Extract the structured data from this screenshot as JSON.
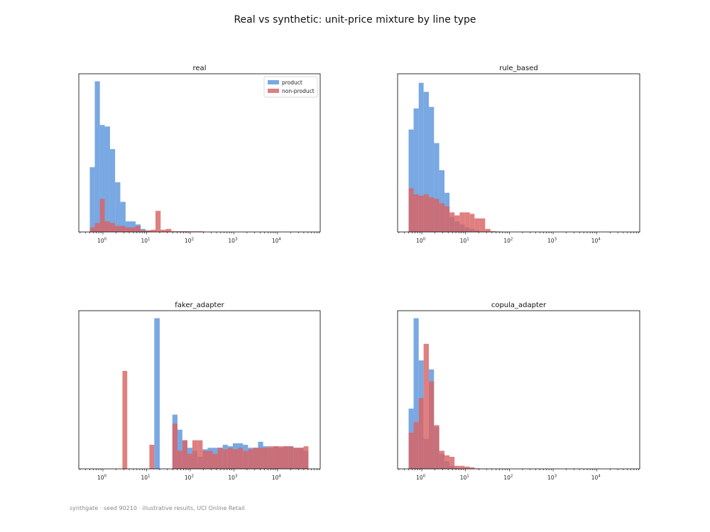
{
  "figure": {
    "title": "Real vs synthetic: unit-price mixture by line type",
    "footer": "synthgate · seed 90210 · illustrative results, UCI Online Retail"
  },
  "colors": {
    "product": "#5b95dd",
    "non_product": "#d96363"
  },
  "chart_data": [
    {
      "type": "bar",
      "title": "real",
      "x_scale": "log",
      "x_ticks": [
        "10^0",
        "10^1",
        "10^2",
        "10^3",
        "10^4"
      ],
      "legend": {
        "position": "top-right",
        "entries": [
          "product",
          "non-product"
        ]
      },
      "series": [
        {
          "name": "product",
          "color": "#5b95dd",
          "bins": [
            [
              0.5,
              0.65,
              0.43
            ],
            [
              0.65,
              0.85,
              1.0
            ],
            [
              0.85,
              1.1,
              0.71
            ],
            [
              1.1,
              1.45,
              0.7
            ],
            [
              1.45,
              1.9,
              0.55
            ],
            [
              1.9,
              2.5,
              0.33
            ],
            [
              2.5,
              3.3,
              0.2
            ],
            [
              3.3,
              4.3,
              0.07
            ],
            [
              4.3,
              5.6,
              0.07
            ],
            [
              5.6,
              7.3,
              0.05
            ],
            [
              7.3,
              9.5,
              0.02
            ],
            [
              9.5,
              12.5,
              0.01
            ]
          ]
        },
        {
          "name": "non-product",
          "color": "#d96363",
          "bins": [
            [
              0.5,
              0.65,
              0.03
            ],
            [
              0.65,
              0.85,
              0.06
            ],
            [
              0.85,
              1.1,
              0.22
            ],
            [
              1.1,
              1.45,
              0.07
            ],
            [
              1.45,
              1.9,
              0.06
            ],
            [
              1.9,
              2.5,
              0.04
            ],
            [
              2.5,
              3.3,
              0.04
            ],
            [
              3.3,
              4.3,
              0.03
            ],
            [
              4.3,
              5.6,
              0.03
            ],
            [
              5.6,
              7.3,
              0.04
            ],
            [
              7.3,
              9.5,
              0.01
            ],
            [
              9.5,
              12.5,
              0.01
            ],
            [
              12.5,
              16,
              0.015
            ],
            [
              16,
              21,
              0.14
            ],
            [
              21,
              28,
              0.015
            ],
            [
              28,
              37,
              0.02
            ],
            [
              37,
              49,
              0.005
            ],
            [
              49,
              65,
              0.005
            ],
            [
              65,
              85,
              0.005
            ],
            [
              85,
              112,
              0.004
            ],
            [
              112,
              150,
              0.004
            ],
            [
              150,
              200,
              0.004
            ]
          ]
        }
      ]
    },
    {
      "type": "bar",
      "title": "rule_based",
      "x_scale": "log",
      "x_ticks": [
        "10^0",
        "10^1",
        "10^2",
        "10^3",
        "10^4"
      ],
      "series": [
        {
          "name": "product",
          "color": "#5b95dd",
          "bins": [
            [
              0.5,
              0.65,
              0.68
            ],
            [
              0.65,
              0.85,
              0.82
            ],
            [
              0.85,
              1.1,
              0.99
            ],
            [
              1.1,
              1.45,
              0.93
            ],
            [
              1.45,
              1.9,
              0.83
            ],
            [
              1.9,
              2.5,
              0.59
            ],
            [
              2.5,
              3.3,
              0.41
            ],
            [
              3.3,
              4.3,
              0.26
            ],
            [
              4.3,
              5.6,
              0.1
            ],
            [
              5.6,
              7.3,
              0.07
            ],
            [
              7.3,
              9.5,
              0.05
            ],
            [
              9.5,
              12.5,
              0.03
            ],
            [
              12.5,
              16,
              0.02
            ],
            [
              16,
              21,
              0.01
            ]
          ]
        },
        {
          "name": "non-product",
          "color": "#d96363",
          "bins": [
            [
              0.5,
              0.65,
              0.29
            ],
            [
              0.65,
              0.85,
              0.25
            ],
            [
              0.85,
              1.1,
              0.24
            ],
            [
              1.1,
              1.45,
              0.25
            ],
            [
              1.45,
              1.9,
              0.23
            ],
            [
              1.9,
              2.5,
              0.22
            ],
            [
              2.5,
              3.3,
              0.19
            ],
            [
              3.3,
              4.3,
              0.17
            ],
            [
              4.3,
              5.6,
              0.13
            ],
            [
              5.6,
              7.3,
              0.11
            ],
            [
              7.3,
              9.5,
              0.13
            ],
            [
              9.5,
              12.5,
              0.13
            ],
            [
              12.5,
              16,
              0.12
            ],
            [
              16,
              21,
              0.09
            ],
            [
              21,
              28,
              0.09
            ],
            [
              28,
              37,
              0.02
            ],
            [
              37,
              49,
              0.005
            ],
            [
              49,
              65,
              0.003
            ]
          ]
        }
      ]
    },
    {
      "type": "bar",
      "title": "faker_adapter",
      "x_scale": "log",
      "x_ticks": [
        "10^0",
        "10^1",
        "10^2",
        "10^3",
        "10^4"
      ],
      "series": [
        {
          "name": "product",
          "color": "#5b95dd",
          "bins": [
            [
              15,
              20,
              1.0
            ],
            [
              39,
              51,
              0.36
            ],
            [
              51,
              66,
              0.26
            ],
            [
              66,
              86,
              0.19
            ],
            [
              86,
              112,
              0.14
            ],
            [
              112,
              147,
              0.12
            ],
            [
              147,
              192,
              0.08
            ],
            [
              192,
              250,
              0.13
            ],
            [
              250,
              326,
              0.14
            ],
            [
              326,
              425,
              0.14
            ],
            [
              425,
              555,
              0.14
            ],
            [
              555,
              725,
              0.16
            ],
            [
              725,
              946,
              0.15
            ],
            [
              946,
              1235,
              0.17
            ],
            [
              1235,
              1612,
              0.17
            ],
            [
              1612,
              2104,
              0.16
            ],
            [
              2104,
              2746,
              0.14
            ],
            [
              2746,
              3584,
              0.14
            ],
            [
              3584,
              4678,
              0.18
            ],
            [
              4678,
              6106,
              0.15
            ],
            [
              6106,
              7970,
              0.14
            ],
            [
              7970,
              10403,
              0.15
            ],
            [
              10403,
              13579,
              0.14
            ],
            [
              13579,
              17724,
              0.15
            ],
            [
              17724,
              23134,
              0.15
            ],
            [
              23134,
              30196,
              0.14
            ],
            [
              30196,
              39414,
              0.14
            ],
            [
              39414,
              51000,
              0.12
            ]
          ]
        },
        {
          "name": "non-product",
          "color": "#d96363",
          "bins": [
            [
              2.8,
              3.6,
              0.65
            ],
            [
              11.6,
              15,
              0.16
            ],
            [
              39,
              51,
              0.3
            ],
            [
              51,
              66,
              0.12
            ],
            [
              66,
              86,
              0.19
            ],
            [
              86,
              112,
              0.1
            ],
            [
              112,
              147,
              0.19
            ],
            [
              147,
              192,
              0.19
            ],
            [
              192,
              250,
              0.12
            ],
            [
              250,
              326,
              0.12
            ],
            [
              326,
              425,
              0.1
            ],
            [
              425,
              555,
              0.14
            ],
            [
              555,
              725,
              0.13
            ],
            [
              725,
              946,
              0.14
            ],
            [
              946,
              1235,
              0.13
            ],
            [
              1235,
              1612,
              0.14
            ],
            [
              1612,
              2104,
              0.12
            ],
            [
              2104,
              2746,
              0.13
            ],
            [
              2746,
              3584,
              0.14
            ],
            [
              3584,
              4678,
              0.14
            ],
            [
              4678,
              6106,
              0.14
            ],
            [
              6106,
              7970,
              0.15
            ],
            [
              7970,
              10403,
              0.15
            ],
            [
              10403,
              13579,
              0.15
            ],
            [
              13579,
              17724,
              0.15
            ],
            [
              17724,
              23134,
              0.15
            ],
            [
              23134,
              30196,
              0.14
            ],
            [
              30196,
              39414,
              0.14
            ],
            [
              39414,
              51000,
              0.15
            ]
          ]
        }
      ]
    },
    {
      "type": "bar",
      "title": "copula_adapter",
      "x_scale": "log",
      "x_ticks": [
        "10^0",
        "10^1",
        "10^2",
        "10^3",
        "10^4"
      ],
      "series": [
        {
          "name": "product",
          "color": "#5b95dd",
          "bins": [
            [
              0.5,
              0.65,
              0.4
            ],
            [
              0.65,
              0.85,
              1.0
            ],
            [
              0.85,
              1.1,
              0.72
            ],
            [
              1.1,
              1.45,
              0.2
            ],
            [
              1.45,
              1.9,
              0.66
            ],
            [
              1.9,
              2.5,
              0.28
            ],
            [
              2.5,
              3.3,
              0.1
            ],
            [
              3.3,
              4.3,
              0.05
            ],
            [
              4.3,
              5.6,
              0.02
            ],
            [
              5.6,
              7.3,
              0.005
            ]
          ]
        },
        {
          "name": "non-product",
          "color": "#d96363",
          "bins": [
            [
              0.5,
              0.65,
              0.24
            ],
            [
              0.65,
              0.85,
              0.31
            ],
            [
              0.85,
              1.1,
              0.47
            ],
            [
              1.1,
              1.45,
              0.83
            ],
            [
              1.45,
              1.9,
              0.58
            ],
            [
              1.9,
              2.5,
              0.29
            ],
            [
              2.5,
              3.3,
              0.12
            ],
            [
              3.3,
              4.3,
              0.09
            ],
            [
              4.3,
              5.6,
              0.08
            ],
            [
              5.6,
              7.3,
              0.02
            ],
            [
              7.3,
              9.5,
              0.02
            ],
            [
              9.5,
              12.5,
              0.015
            ],
            [
              12.5,
              16,
              0.01
            ],
            [
              16,
              21,
              0.003
            ],
            [
              21,
              28,
              0.002
            ]
          ]
        }
      ]
    }
  ]
}
